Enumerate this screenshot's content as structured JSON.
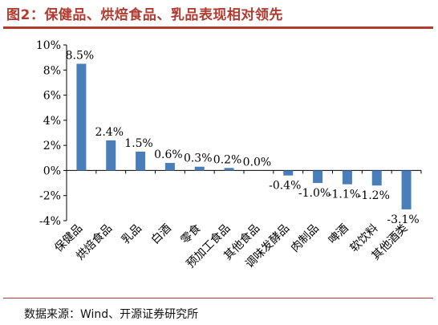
{
  "figure_title": "图2：保健品、烘焙食品、乳品表现相对领先",
  "source_note": "数据来源：Wind、开源证券研究所",
  "colors": {
    "bar": "#4a7ebb",
    "title": "#b23a2f",
    "axis": "#000000"
  },
  "chart_data": {
    "type": "bar",
    "title": "",
    "xlabel": "",
    "ylabel": "",
    "ylim": [
      -4,
      10
    ],
    "yticks": [
      "10%",
      "8%",
      "6%",
      "4%",
      "2%",
      "0%",
      "-2%",
      "-4%"
    ],
    "categories": [
      "保健品",
      "烘焙食品",
      "乳品",
      "白酒",
      "零食",
      "预加工食品",
      "其他食品",
      "调味发酵品",
      "肉制品",
      "啤酒",
      "软饮料",
      "其他酒类"
    ],
    "values": [
      8.5,
      2.4,
      1.5,
      0.6,
      0.3,
      0.2,
      0.0,
      -0.4,
      -1.0,
      -1.1,
      -1.2,
      -3.1
    ],
    "data_labels": [
      "8.5%",
      "2.4%",
      "1.5%",
      "0.6%",
      "0.3%",
      "0.2%",
      "0.0%",
      "-0.4%",
      "-1.0%",
      "-1.1%",
      "-1.2%",
      "-3.1%"
    ],
    "grid": false,
    "legend": "none"
  }
}
